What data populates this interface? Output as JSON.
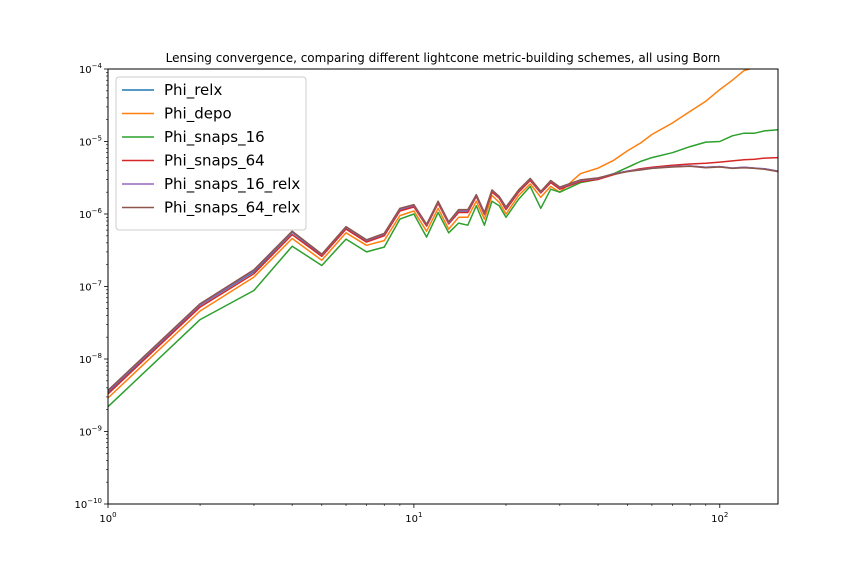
{
  "chart_data": {
    "type": "line",
    "title": "Lensing convergence, comparing different lightcone metric-building schemes, all using Born",
    "xlabel": "",
    "ylabel": "",
    "xscale": "log",
    "yscale": "log",
    "xlim": [
      1,
      155
    ],
    "ylim": [
      1e-10,
      0.0001
    ],
    "grid": false,
    "legend_position": "upper-left",
    "x_ticks": [
      {
        "value": 1,
        "base": "10",
        "exp": "0"
      },
      {
        "value": 10,
        "base": "10",
        "exp": "1"
      },
      {
        "value": 100,
        "base": "10",
        "exp": "2"
      }
    ],
    "y_ticks": [
      {
        "value": 1e-10,
        "base": "10",
        "exp": "−10"
      },
      {
        "value": 1e-09,
        "base": "10",
        "exp": "−9"
      },
      {
        "value": 1e-08,
        "base": "10",
        "exp": "−8"
      },
      {
        "value": 1e-07,
        "base": "10",
        "exp": "−7"
      },
      {
        "value": 1e-06,
        "base": "10",
        "exp": "−6"
      },
      {
        "value": 1e-05,
        "base": "10",
        "exp": "−5"
      },
      {
        "value": 0.0001,
        "base": "10",
        "exp": "−4"
      }
    ],
    "x": [
      1,
      2,
      3,
      4,
      5,
      6,
      7,
      8,
      9,
      10,
      11,
      12,
      13,
      14,
      15,
      16,
      17,
      18,
      19,
      20,
      22,
      24,
      26,
      28,
      30,
      35,
      40,
      45,
      50,
      55,
      60,
      70,
      80,
      90,
      100,
      110,
      120,
      130,
      140,
      155
    ],
    "series": [
      {
        "name": "Phi_relx",
        "color": "#1f77b4",
        "values": [
          3.5e-09,
          5.5e-08,
          1.6e-07,
          5.6e-07,
          2.7e-07,
          6.5e-07,
          4.3e-07,
          5.2e-07,
          1.15e-06,
          1.3e-06,
          7e-07,
          1.45e-06,
          7.5e-07,
          1.1e-06,
          1.1e-06,
          1.8e-06,
          1e-06,
          2.1e-06,
          1.7e-06,
          1.2e-06,
          2.1e-06,
          3e-06,
          2e-06,
          2.8e-06,
          2.3e-06,
          2.9e-06,
          3.1e-06,
          3.6e-06,
          3.9e-06,
          4.1e-06,
          4.3e-06,
          4.5e-06,
          4.6e-06,
          4.4e-06,
          4.5e-06,
          4.3e-06,
          4.4e-06,
          4.3e-06,
          4.2e-06,
          3.9e-06
        ]
      },
      {
        "name": "Phi_depo",
        "color": "#ff7f0e",
        "values": [
          2.9e-09,
          4.6e-08,
          1.35e-07,
          4.6e-07,
          2.3e-07,
          5.5e-07,
          3.7e-07,
          4.3e-07,
          9.5e-07,
          1.1e-06,
          5.8e-07,
          1.2e-06,
          6.2e-07,
          9e-07,
          9e-07,
          1.5e-06,
          8.5e-07,
          1.8e-06,
          1.45e-06,
          1e-06,
          1.8e-06,
          2.6e-06,
          1.7e-06,
          2.4e-06,
          2e-06,
          3.6e-06,
          4.3e-06,
          5.5e-06,
          7.5e-06,
          9.5e-06,
          1.25e-05,
          1.8e-05,
          2.6e-05,
          3.6e-05,
          5.2e-05,
          7e-05,
          9.5e-05,
          0.000105,
          0.00011,
          0.00012
        ]
      },
      {
        "name": "Phi_snaps_16",
        "color": "#2ca02c",
        "values": [
          2.2e-09,
          3.5e-08,
          8.8e-08,
          3.6e-07,
          1.95e-07,
          4.5e-07,
          3e-07,
          3.5e-07,
          8.5e-07,
          1e-06,
          4.8e-07,
          1.05e-06,
          5.5e-07,
          7.5e-07,
          7e-07,
          1.3e-06,
          7e-07,
          1.5e-06,
          1.3e-06,
          9e-07,
          1.6e-06,
          2.4e-06,
          1.2e-06,
          2.2e-06,
          2e-06,
          2.7e-06,
          3e-06,
          3.6e-06,
          4.4e-06,
          5.3e-06,
          6e-06,
          7e-06,
          8.5e-06,
          9.8e-06,
          1e-05,
          1.2e-05,
          1.3e-05,
          1.3e-05,
          1.4e-05,
          1.45e-05
        ]
      },
      {
        "name": "Phi_snaps_64",
        "color": "#d62728",
        "values": [
          3.3e-09,
          5.2e-08,
          1.5e-07,
          5.2e-07,
          2.6e-07,
          6.2e-07,
          4.1e-07,
          5e-07,
          1.1e-06,
          1.25e-06,
          6.8e-07,
          1.4e-06,
          7.3e-07,
          1.05e-06,
          1.05e-06,
          1.75e-06,
          9.8e-07,
          2e-06,
          1.65e-06,
          1.15e-06,
          2e-06,
          2.9e-06,
          1.95e-06,
          2.7e-06,
          2.2e-06,
          2.8e-06,
          3e-06,
          3.5e-06,
          3.9e-06,
          4.2e-06,
          4.4e-06,
          4.7e-06,
          4.9e-06,
          5e-06,
          5.2e-06,
          5.4e-06,
          5.6e-06,
          5.7e-06,
          5.9e-06,
          6e-06
        ]
      },
      {
        "name": "Phi_snaps_16_relx",
        "color": "#9467bd",
        "values": [
          3.6e-09,
          5.6e-08,
          1.65e-07,
          5.7e-07,
          2.75e-07,
          6.6e-07,
          4.35e-07,
          5.3e-07,
          1.17e-06,
          1.32e-06,
          7.1e-07,
          1.47e-06,
          7.6e-07,
          1.12e-06,
          1.12e-06,
          1.82e-06,
          1.02e-06,
          2.12e-06,
          1.72e-06,
          1.22e-06,
          2.12e-06,
          3.05e-06,
          2.02e-06,
          2.85e-06,
          2.32e-06,
          2.9e-06,
          3.1e-06,
          3.6e-06,
          3.9e-06,
          4.1e-06,
          4.3e-06,
          4.5e-06,
          4.6e-06,
          4.4e-06,
          4.5e-06,
          4.3e-06,
          4.4e-06,
          4.3e-06,
          4.2e-06,
          3.9e-06
        ]
      },
      {
        "name": "Phi_snaps_64_relx",
        "color": "#8c564b",
        "values": [
          3.7e-09,
          5.8e-08,
          1.7e-07,
          5.8e-07,
          2.8e-07,
          6.7e-07,
          4.4e-07,
          5.4e-07,
          1.2e-06,
          1.35e-06,
          7.2e-07,
          1.5e-06,
          7.8e-07,
          1.15e-06,
          1.15e-06,
          1.85e-06,
          1.05e-06,
          2.15e-06,
          1.75e-06,
          1.25e-06,
          2.15e-06,
          3.1e-06,
          2.05e-06,
          2.9e-06,
          2.35e-06,
          2.95e-06,
          3.15e-06,
          3.55e-06,
          3.85e-06,
          4.05e-06,
          4.25e-06,
          4.45e-06,
          4.55e-06,
          4.35e-06,
          4.45e-06,
          4.25e-06,
          4.35e-06,
          4.25e-06,
          4.15e-06,
          3.85e-06
        ]
      }
    ]
  }
}
